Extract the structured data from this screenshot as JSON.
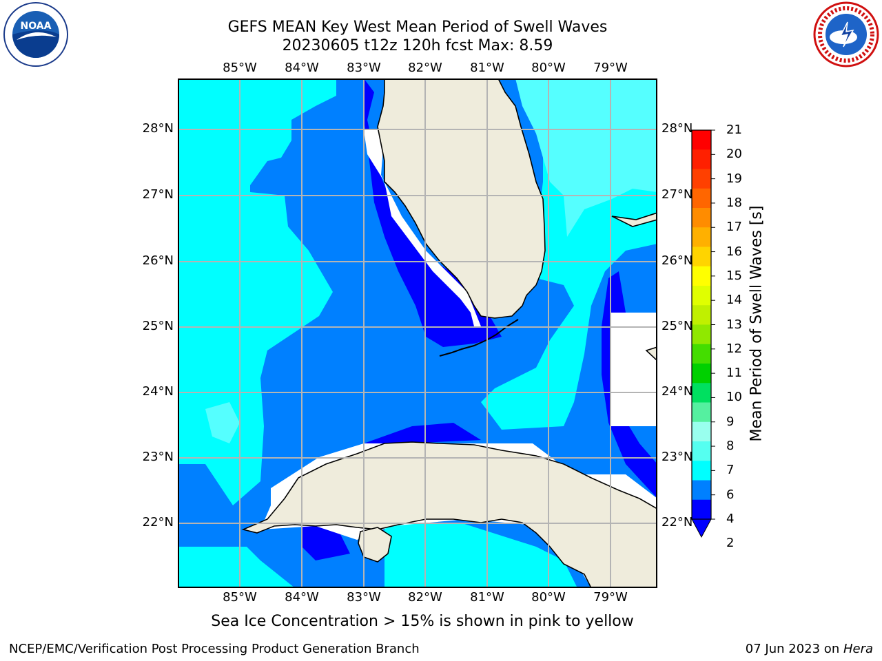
{
  "title": {
    "line1": "GEFS MEAN Key West Mean Period of Swell Waves",
    "line2": "20230605 t12z 120h fcst   Max: 8.59"
  },
  "map": {
    "lon_labels": [
      "85°W",
      "84°W",
      "83°W",
      "82°W",
      "81°W",
      "80°W",
      "79°W"
    ],
    "lat_labels": [
      "28°N",
      "27°N",
      "26°N",
      "25°N",
      "24°N",
      "23°N",
      "22°N"
    ],
    "land_color": "#efecdc",
    "gridline_color": "#b4b4b4"
  },
  "colorbar": {
    "label": "Mean Period of Swell Waves [s]",
    "ticks": [
      "21",
      "20",
      "19",
      "18",
      "17",
      "16",
      "15",
      "14",
      "13",
      "12",
      "11",
      "10",
      "9",
      "8",
      "7",
      "6",
      "4",
      "2"
    ],
    "colors": [
      "#ff0000",
      "#ff2000",
      "#ff4000",
      "#ff6600",
      "#ff8c00",
      "#ffb000",
      "#ffd400",
      "#ffff00",
      "#e0ff00",
      "#c0f000",
      "#90e800",
      "#44dd00",
      "#00d000",
      "#00e060",
      "#55f0a0",
      "#99ffee",
      "#55fff0",
      "#00ffff",
      "#0080ff",
      "#0000ff"
    ],
    "extend": "min"
  },
  "note": "Sea Ice Concentration > 15% is shown in pink to yellow",
  "footer": {
    "left": "NCEP/EMC/Verification Post Processing Product Generation Branch",
    "date": "07 Jun 2023 on ",
    "machine": "Hera"
  },
  "logos": {
    "left_icon": "noaa-logo",
    "left_text": "NOAA",
    "right_icon": "national-weather-service-logo",
    "right_text": "NATIONAL WEATHER SERVICE"
  }
}
